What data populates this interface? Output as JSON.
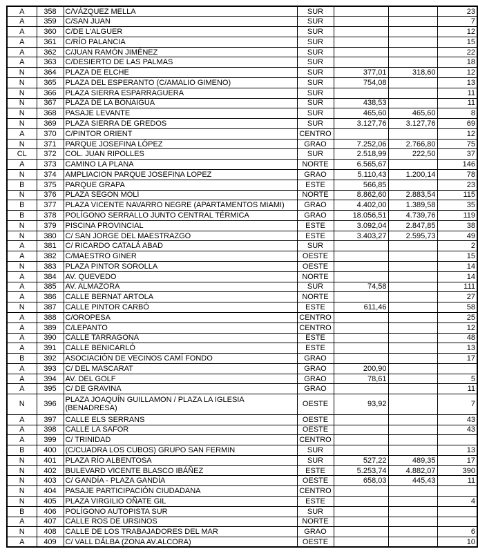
{
  "table": {
    "columns": [
      {
        "key": "category",
        "align": "center"
      },
      {
        "key": "number",
        "align": "center"
      },
      {
        "key": "name",
        "align": "left"
      },
      {
        "key": "zone",
        "align": "center"
      },
      {
        "key": "value1",
        "align": "right"
      },
      {
        "key": "value2",
        "align": "right"
      },
      {
        "key": "count",
        "align": "right"
      }
    ],
    "rows": [
      {
        "cells": [
          "A",
          "358",
          "C/VÁZQUEZ MELLA",
          "SUR",
          "",
          "",
          "23"
        ]
      },
      {
        "cells": [
          "A",
          "359",
          "C/SAN JUAN",
          "SUR",
          "",
          "",
          "7"
        ]
      },
      {
        "cells": [
          "A",
          "360",
          "C/DE L'ALGUER",
          "SUR",
          "",
          "",
          "12"
        ]
      },
      {
        "cells": [
          "A",
          "361",
          "C/RÍO PALANCIA",
          "SUR",
          "",
          "",
          "15"
        ]
      },
      {
        "cells": [
          "A",
          "362",
          "C/JUAN RAMÓN JIMÉNEZ",
          "SUR",
          "",
          "",
          "22"
        ]
      },
      {
        "cells": [
          "A",
          "363",
          "C/DESIERTO DE LAS PALMAS",
          "SUR",
          "",
          "",
          "18"
        ]
      },
      {
        "cells": [
          "N",
          "364",
          "PLAZA DE ELCHE",
          "SUR",
          "377,01",
          "318,60",
          "12"
        ]
      },
      {
        "cells": [
          "N",
          "365",
          "PLAZA DEL ESPERANTO (C/AMALIO GIMENO)",
          "SUR",
          "754,08",
          "",
          "13"
        ]
      },
      {
        "cells": [
          "N",
          "366",
          "PLAZA SIERRA ESPARRAGUERA",
          "SUR",
          "",
          "",
          "11"
        ]
      },
      {
        "cells": [
          "N",
          "367",
          "PLAZA DE LA BONAIGUA",
          "SUR",
          "438,53",
          "",
          "11"
        ]
      },
      {
        "cells": [
          "N",
          "368",
          "PASAJE LEVANTE",
          "SUR",
          "465,60",
          "465,60",
          "8"
        ]
      },
      {
        "cells": [
          "N",
          "369",
          "PLAZA SIERRA DE GREDOS",
          "SUR",
          "3.127,76",
          "3.127,76",
          "69"
        ]
      },
      {
        "cells": [
          "A",
          "370",
          "C/PINTOR ORIENT",
          "CENTRO",
          "",
          "",
          "12"
        ]
      },
      {
        "cells": [
          "N",
          "371",
          "PARQUE JOSEFINA LÓPEZ",
          "GRAO",
          "7.252,06",
          "2.766,80",
          "75"
        ]
      },
      {
        "cells": [
          "CL",
          "372",
          "COL. JUAN RIPOLLES",
          "SUR",
          "2.518,99",
          "222,50",
          "37"
        ]
      },
      {
        "cells": [
          "A",
          "373",
          "CAMINO LA PLANA",
          "NORTE",
          "6.565,67",
          "",
          "146"
        ]
      },
      {
        "cells": [
          "N",
          "374",
          "AMPLIACION PARQUE JOSEFINA LOPEZ",
          "GRAO",
          "5.110,43",
          "1.200,14",
          "78"
        ]
      },
      {
        "cells": [
          "B",
          "375",
          "PARQUE GRAPA",
          "ESTE",
          "566,85",
          "",
          "23"
        ]
      },
      {
        "cells": [
          "N",
          "376",
          "PLAZA SEGON MOLÍ",
          "NORTE",
          "8.862,60",
          "2.883,54",
          "115"
        ]
      },
      {
        "cells": [
          "B",
          "377",
          "PLAZA VICENTE NAVARRO NEGRE (APARTAMENTOS MIAMI)",
          "GRAO",
          "4.402,00",
          "1.389,58",
          "35"
        ]
      },
      {
        "cells": [
          "B",
          "378",
          "POLÍGONO SERRALLO JUNTO CENTRAL TÉRMICA",
          "GRAO",
          "18.056,51",
          "4.739,76",
          "119"
        ]
      },
      {
        "cells": [
          "N",
          "379",
          "PISCINA PROVINCIAL",
          "ESTE",
          "3.092,04",
          "2.847,85",
          "38"
        ]
      },
      {
        "cells": [
          "N",
          "380",
          "C/ SAN JORGE DEL MAESTRAZGO",
          "ESTE",
          "3.403,27",
          "2.595,73",
          "49"
        ]
      },
      {
        "cells": [
          "A",
          "381",
          "C/ RICARDO CATALÁ ABAD",
          "SUR",
          "",
          "",
          "2"
        ]
      },
      {
        "cells": [
          "A",
          "382",
          "C/MAESTRO GINER",
          "OESTE",
          "",
          "",
          "15"
        ]
      },
      {
        "cells": [
          "N",
          "383",
          "PLAZA PINTOR SOROLLA",
          "OESTE",
          "",
          "",
          "14"
        ]
      },
      {
        "cells": [
          "A",
          "384",
          "AV. QUEVEDO",
          "NORTE",
          "",
          "",
          "14"
        ]
      },
      {
        "cells": [
          "A",
          "385",
          "AV. ALMAZORA",
          "SUR",
          "74,58",
          "",
          "111"
        ]
      },
      {
        "cells": [
          "A",
          "386",
          "CALLE BERNAT ARTOLA",
          "NORTE",
          "",
          "",
          "27"
        ]
      },
      {
        "cells": [
          "N",
          "387",
          "CALLE PINTOR CARBÓ",
          "ESTE",
          "611,46",
          "",
          "58"
        ]
      },
      {
        "cells": [
          "A",
          "388",
          "C/OROPESA",
          "CENTRO",
          "",
          "",
          "25"
        ]
      },
      {
        "cells": [
          "A",
          "389",
          "C/LEPANTO",
          "CENTRO",
          "",
          "",
          "12"
        ]
      },
      {
        "cells": [
          "A",
          "390",
          "CALLE TARRAGONA",
          "ESTE",
          "",
          "",
          "48"
        ]
      },
      {
        "cells": [
          "A",
          "391",
          "CALLE BENICARLÓ",
          "ESTE",
          "",
          "",
          "13"
        ]
      },
      {
        "cells": [
          "B",
          "392",
          "ASOCIACIÓN DE VECINOS CAMÍ FONDO",
          "GRAO",
          "",
          "",
          "17"
        ]
      },
      {
        "cells": [
          "A",
          "393",
          "C/ DEL MASCARAT",
          "GRAO",
          "200,90",
          "",
          ""
        ]
      },
      {
        "cells": [
          "A",
          "394",
          "AV. DEL GOLF",
          "GRAO",
          "78,61",
          "",
          "5"
        ]
      },
      {
        "cells": [
          "A",
          "395",
          "C/ DE GRAVINA",
          "GRAO",
          "",
          "",
          "11"
        ]
      },
      {
        "tall": true,
        "cells": [
          "N",
          "396",
          [
            "PLAZA JOAQUÍN GUILLAMON / PLAZA LA IGLESIA",
            "(BENADRESA)"
          ],
          "OESTE",
          "93,92",
          "",
          "7"
        ]
      },
      {
        "cells": [
          "A",
          "397",
          "CALLE ELS SERRANS",
          "OESTE",
          "",
          "",
          "43"
        ]
      },
      {
        "cells": [
          "A",
          "398",
          "CALLE LA SAFOR",
          "OESTE",
          "",
          "",
          "43"
        ]
      },
      {
        "cells": [
          "A",
          "399",
          "C/ TRINIDAD",
          "CENTRO",
          "",
          "",
          ""
        ]
      },
      {
        "cells": [
          "B",
          "400",
          "(C/CUADRA LOS CUBOS) GRUPO SAN FERMIN",
          "SUR",
          "",
          "",
          "13"
        ]
      },
      {
        "cells": [
          "N",
          "401",
          "PLAZA RÍO ALBENTOSA",
          "SUR",
          "527,22",
          "489,35",
          "17"
        ]
      },
      {
        "cells": [
          "N",
          "402",
          "BULEVARD VICENTE BLASCO IBÁÑEZ",
          "ESTE",
          "5.253,74",
          "4.882,07",
          "390"
        ]
      },
      {
        "cells": [
          "N",
          "403",
          "C/ GANDÍA - PLAZA GANDÍA",
          "OESTE",
          "658,03",
          "445,43",
          "11"
        ]
      },
      {
        "cells": [
          "N",
          "404",
          "PASAJE PARTICIPACIÓN CIUDADANA",
          "CENTRO",
          "",
          "",
          ""
        ]
      },
      {
        "cells": [
          "N",
          "405",
          "PLAZA VIRGILIO OÑATE GIL",
          "ESTE",
          "",
          "",
          "4"
        ]
      },
      {
        "cells": [
          "B",
          "406",
          "POLÍGONO AUTOPISTA SUR",
          "SUR",
          "",
          "",
          ""
        ]
      },
      {
        "cells": [
          "A",
          "407",
          "CALLE ROS DE URSINOS",
          "NORTE",
          "",
          "",
          ""
        ]
      },
      {
        "cells": [
          "N",
          "408",
          "CALLE DE LOS TRABAJADORES DEL MAR",
          "GRAO",
          "",
          "",
          "6"
        ]
      },
      {
        "cells": [
          "A",
          "409",
          "C/ VALL DÁLBA (ZONA AV.ALCORA)",
          "OESTE",
          "",
          "",
          "10"
        ]
      }
    ]
  }
}
